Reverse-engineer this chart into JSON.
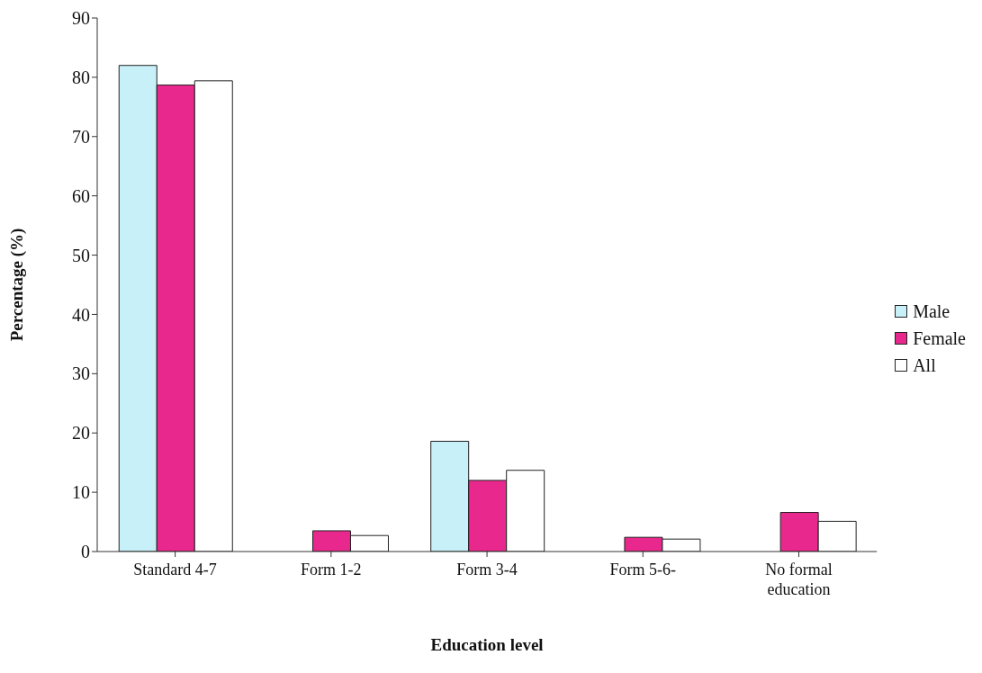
{
  "chart_data": {
    "type": "bar",
    "xlabel": "Education level",
    "ylabel": "Percentage (%)",
    "categories": [
      "Standard 4-7",
      "Form 1-2",
      "Form 3-4",
      "Form 5-6-",
      "No formal education"
    ],
    "series": [
      {
        "name": "Male",
        "color": "#c8f0f8",
        "values": [
          82.0,
          0,
          18.6,
          0,
          0
        ]
      },
      {
        "name": "Female",
        "color": "#e8288c",
        "values": [
          78.7,
          3.5,
          12.0,
          2.4,
          6.6
        ]
      },
      {
        "name": "All",
        "color": "#ffffff",
        "values": [
          79.4,
          2.7,
          13.7,
          2.1,
          5.1
        ]
      }
    ],
    "ylim": [
      0,
      90
    ],
    "yticks": [
      0,
      10,
      20,
      30,
      40,
      50,
      60,
      70,
      80,
      90
    ],
    "grid": false,
    "legend": "right"
  }
}
